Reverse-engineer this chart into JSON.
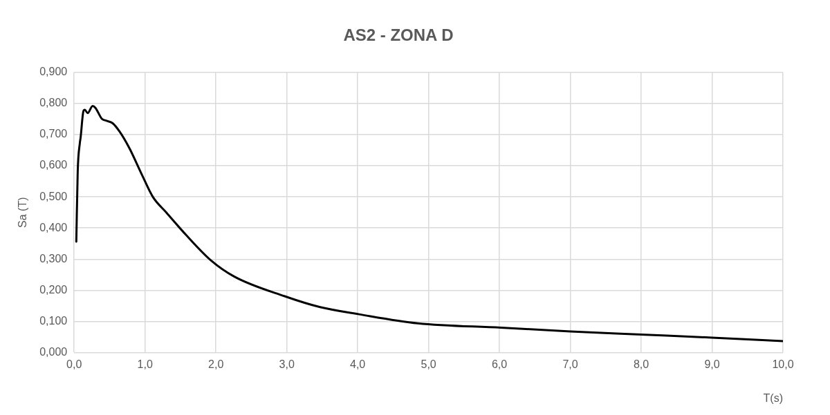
{
  "chart_data": {
    "type": "line",
    "title": "AS2 - ZONA D",
    "xlabel": "T(s)",
    "ylabel": "Sa (T)",
    "series": [
      {
        "color": "#000000",
        "x": [
          0.03,
          0.05,
          0.08,
          0.09,
          0.13,
          0.15,
          0.19,
          0.26,
          0.3,
          0.39,
          0.45,
          0.54,
          0.64,
          0.78,
          0.95,
          1.11,
          1.3,
          1.57,
          1.93,
          2.26,
          2.97,
          3.47,
          4.02,
          4.85,
          6.02,
          7.0,
          8.0,
          9.0,
          10.0
        ],
        "values": [
          0.356,
          0.582,
          0.673,
          0.689,
          0.775,
          0.78,
          0.769,
          0.792,
          0.786,
          0.751,
          0.745,
          0.737,
          0.71,
          0.656,
          0.574,
          0.5,
          0.45,
          0.38,
          0.296,
          0.244,
          0.181,
          0.146,
          0.123,
          0.094,
          0.08,
          0.068,
          0.058,
          0.048,
          0.037
        ]
      }
    ],
    "xlim": [
      0,
      10
    ],
    "xticks": [
      {
        "value": 0,
        "label": "0,0"
      },
      {
        "value": 1,
        "label": "1,0"
      },
      {
        "value": 2,
        "label": "2,0"
      },
      {
        "value": 3,
        "label": "3,0"
      },
      {
        "value": 4,
        "label": "4,0"
      },
      {
        "value": 5,
        "label": "5,0"
      },
      {
        "value": 6,
        "label": "6,0"
      },
      {
        "value": 7,
        "label": "7,0"
      },
      {
        "value": 8,
        "label": "8,0"
      },
      {
        "value": 9,
        "label": "9,0"
      },
      {
        "value": 10,
        "label": "10,0"
      }
    ],
    "ylim": [
      0,
      0.9
    ],
    "yticks": [
      {
        "value": 0,
        "label": "0,000"
      },
      {
        "value": 0.1,
        "label": "0,100"
      },
      {
        "value": 0.2,
        "label": "0,200"
      },
      {
        "value": 0.3,
        "label": "0,300"
      },
      {
        "value": 0.4,
        "label": "0,400"
      },
      {
        "value": 0.5,
        "label": "0,500"
      },
      {
        "value": 0.6,
        "label": "0,600"
      },
      {
        "value": 0.7,
        "label": "0,700"
      },
      {
        "value": 0.8,
        "label": "0,800"
      },
      {
        "value": 0.9,
        "label": "0,900"
      }
    ],
    "grid": true,
    "legend": false,
    "marker": "none",
    "line_style": "solid"
  }
}
